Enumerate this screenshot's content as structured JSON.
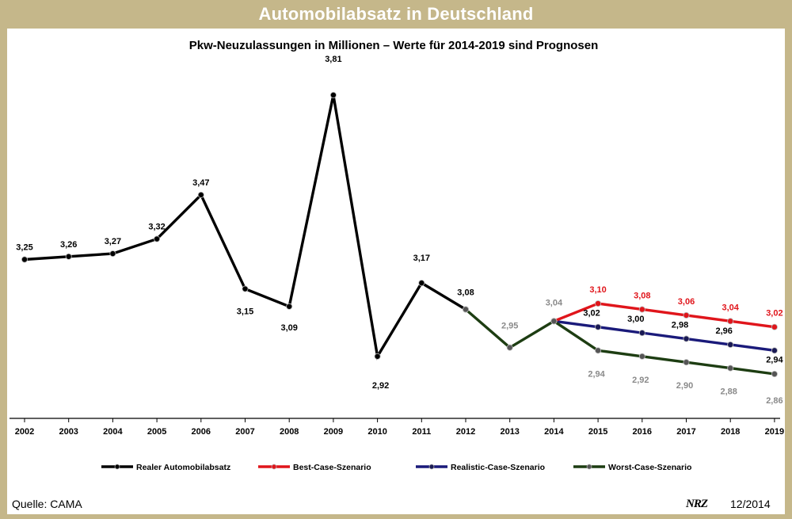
{
  "header": {
    "title": "Automobilabsatz in Deutschland"
  },
  "footer": {
    "source": "Quelle: CAMA",
    "logo": "NRZ",
    "date": "12/2014"
  },
  "colors": {
    "real": "#000000",
    "best": "#e0151b",
    "realistic": "#1a1a7a",
    "worst": "#1d3d12",
    "worst_label": "#8a8a8a",
    "frame": "#c5b78a"
  },
  "chart_data": {
    "type": "line",
    "title": "Pkw-Neuzulassungen in Millionen – Werte für 2014-2019 sind Prognosen",
    "categories": [
      "2002",
      "2003",
      "2004",
      "2005",
      "2006",
      "2007",
      "2008",
      "2009",
      "2010",
      "2011",
      "2012",
      "2013",
      "2014",
      "2015",
      "2016",
      "2017",
      "2018",
      "2019"
    ],
    "ylim": [
      2.7,
      3.9
    ],
    "legend_position": "bottom",
    "series": [
      {
        "name": "Realer Automobilabsatz",
        "key": "real",
        "x": [
          "2002",
          "2003",
          "2004",
          "2005",
          "2006",
          "2007",
          "2008",
          "2009",
          "2010",
          "2011",
          "2012"
        ],
        "values": [
          3.25,
          3.26,
          3.27,
          3.32,
          3.47,
          3.15,
          3.09,
          3.81,
          2.92,
          3.17,
          3.08
        ],
        "labels": [
          "3,25",
          "3,26",
          "3,27",
          "3,32",
          "3,47",
          "3,15",
          "3,09",
          "3,81",
          "2,92",
          "3,17",
          "3,08"
        ]
      },
      {
        "name": "Best-Case-Szenario",
        "key": "best",
        "x": [
          "2014",
          "2015",
          "2016",
          "2017",
          "2018",
          "2019"
        ],
        "values": [
          3.04,
          3.1,
          3.08,
          3.06,
          3.04,
          3.02
        ],
        "labels": [
          "",
          "3,10",
          "3,08",
          "3,06",
          "3,04",
          "3,02"
        ]
      },
      {
        "name": "Realistic-Case-Szenario",
        "key": "realistic",
        "x": [
          "2014",
          "2015",
          "2016",
          "2017",
          "2018",
          "2019"
        ],
        "values": [
          3.04,
          3.02,
          3.0,
          2.98,
          2.96,
          2.94
        ],
        "labels": [
          "",
          "3,02",
          "3,00",
          "2,98",
          "2,96",
          "2,94"
        ]
      },
      {
        "name": "Worst-Case-Szenario",
        "key": "worst",
        "x": [
          "2012",
          "2013",
          "2014",
          "2015",
          "2016",
          "2017",
          "2018",
          "2019"
        ],
        "values": [
          3.08,
          2.95,
          3.04,
          2.94,
          2.92,
          2.9,
          2.88,
          2.86
        ],
        "labels": [
          "",
          "2,95",
          "3,04",
          "2,94",
          "2,92",
          "2,90",
          "2,88",
          "2,86"
        ]
      }
    ]
  }
}
